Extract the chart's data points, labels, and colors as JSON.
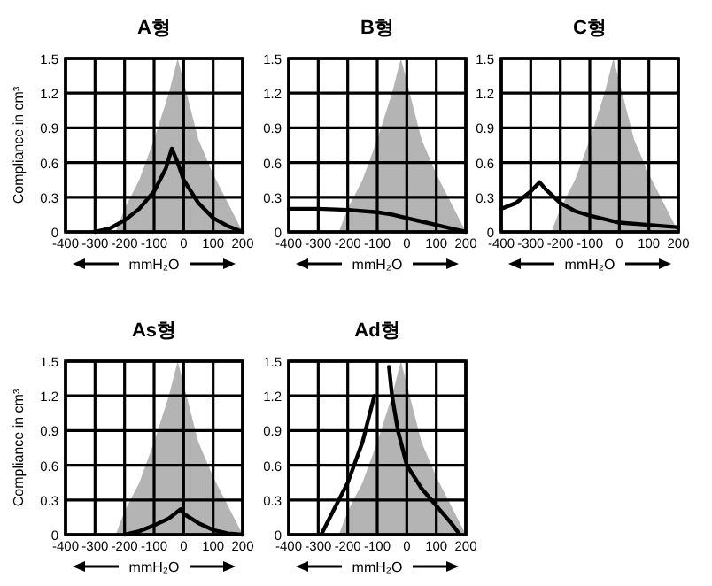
{
  "chart_data": [
    {
      "type": "line",
      "title": "A형",
      "xlabel": "mmH₂O",
      "ylabel": "Compliance in cm³",
      "xlim": [
        -400,
        200
      ],
      "ylim": [
        0,
        1.5
      ],
      "xticks": [
        -400,
        -300,
        -200,
        -100,
        0,
        100,
        200
      ],
      "yticks": [
        0,
        0.3,
        0.6,
        0.9,
        1.2,
        1.5
      ],
      "grid": true,
      "series": [
        {
          "type": "area",
          "color": "#b4b4b4",
          "x": [
            -230,
            -200,
            -150,
            -100,
            -50,
            -20,
            20,
            50,
            100,
            150,
            200
          ],
          "values": [
            0,
            0.2,
            0.45,
            0.8,
            1.2,
            1.5,
            1.1,
            0.8,
            0.5,
            0.25,
            0
          ]
        },
        {
          "type": "line",
          "color": "#000000",
          "x": [
            -300,
            -250,
            -200,
            -150,
            -100,
            -60,
            -40,
            -20,
            0,
            50,
            100,
            150,
            200
          ],
          "values": [
            0,
            0.03,
            0.1,
            0.2,
            0.35,
            0.55,
            0.72,
            0.6,
            0.45,
            0.25,
            0.12,
            0.05,
            0
          ]
        }
      ]
    },
    {
      "type": "line",
      "title": "B형",
      "xlabel": "mmH₂O",
      "xlim": [
        -400,
        200
      ],
      "ylim": [
        0,
        1.5
      ],
      "xticks": [
        -400,
        -300,
        -200,
        -100,
        0,
        100,
        200
      ],
      "yticks": [
        0,
        0.3,
        0.6,
        0.9,
        1.2,
        1.5
      ],
      "grid": true,
      "series": [
        {
          "type": "area",
          "color": "#b4b4b4",
          "x": [
            -230,
            -200,
            -150,
            -100,
            -50,
            -20,
            20,
            50,
            100,
            150,
            200
          ],
          "values": [
            0,
            0.2,
            0.45,
            0.8,
            1.2,
            1.5,
            1.1,
            0.8,
            0.5,
            0.25,
            0
          ]
        },
        {
          "type": "line",
          "color": "#000000",
          "x": [
            -400,
            -300,
            -200,
            -100,
            -50,
            0,
            50,
            100,
            150,
            200
          ],
          "values": [
            0.2,
            0.2,
            0.19,
            0.17,
            0.15,
            0.12,
            0.09,
            0.06,
            0.03,
            0
          ]
        }
      ]
    },
    {
      "type": "line",
      "title": "C형",
      "xlabel": "mmH₂O",
      "xlim": [
        -400,
        200
      ],
      "ylim": [
        0,
        1.5
      ],
      "xticks": [
        -400,
        -300,
        -200,
        -100,
        0,
        100,
        200
      ],
      "yticks": [
        0,
        0.3,
        0.6,
        0.9,
        1.2,
        1.5
      ],
      "grid": true,
      "series": [
        {
          "type": "area",
          "color": "#b4b4b4",
          "x": [
            -230,
            -200,
            -150,
            -100,
            -50,
            -20,
            20,
            50,
            100,
            150,
            200
          ],
          "values": [
            0,
            0.2,
            0.45,
            0.8,
            1.2,
            1.5,
            1.1,
            0.8,
            0.5,
            0.25,
            0
          ]
        },
        {
          "type": "line",
          "color": "#000000",
          "x": [
            -400,
            -350,
            -300,
            -270,
            -250,
            -200,
            -150,
            -100,
            -50,
            0,
            100,
            200
          ],
          "values": [
            0.2,
            0.25,
            0.35,
            0.43,
            0.37,
            0.25,
            0.18,
            0.14,
            0.11,
            0.08,
            0.06,
            0.04
          ]
        }
      ]
    },
    {
      "type": "line",
      "title": "As형",
      "xlabel": "mmH₂O",
      "ylabel": "Compliance in cm³",
      "xlim": [
        -400,
        200
      ],
      "ylim": [
        0,
        1.5
      ],
      "xticks": [
        -400,
        -300,
        -200,
        -100,
        0,
        100,
        200
      ],
      "yticks": [
        0,
        0.3,
        0.6,
        0.9,
        1.2,
        1.5
      ],
      "grid": true,
      "series": [
        {
          "type": "area",
          "color": "#b4b4b4",
          "x": [
            -230,
            -200,
            -150,
            -100,
            -50,
            -20,
            20,
            50,
            100,
            150,
            200
          ],
          "values": [
            0,
            0.2,
            0.45,
            0.8,
            1.2,
            1.5,
            1.1,
            0.8,
            0.5,
            0.25,
            0
          ]
        },
        {
          "type": "line",
          "color": "#000000",
          "x": [
            -200,
            -150,
            -100,
            -50,
            -10,
            0,
            50,
            100,
            150,
            200
          ],
          "values": [
            0,
            0.03,
            0.08,
            0.14,
            0.22,
            0.18,
            0.1,
            0.04,
            0.01,
            0
          ]
        }
      ]
    },
    {
      "type": "line",
      "title": "Ad형",
      "xlabel": "mmH₂O",
      "xlim": [
        -400,
        200
      ],
      "ylim": [
        0,
        1.5
      ],
      "xticks": [
        -400,
        -300,
        -200,
        -100,
        0,
        100,
        200
      ],
      "yticks": [
        0,
        0.3,
        0.6,
        0.9,
        1.2,
        1.5
      ],
      "grid": true,
      "series": [
        {
          "type": "area",
          "color": "#b4b4b4",
          "x": [
            -230,
            -200,
            -150,
            -100,
            -50,
            -20,
            20,
            50,
            100,
            150,
            200
          ],
          "values": [
            0,
            0.2,
            0.45,
            0.8,
            1.2,
            1.5,
            1.1,
            0.8,
            0.5,
            0.25,
            0
          ]
        },
        {
          "type": "line",
          "color": "#000000",
          "x": [
            -290,
            -250,
            -200,
            -150,
            -110
          ],
          "values": [
            0,
            0.2,
            0.45,
            0.8,
            1.2
          ]
        },
        {
          "type": "line",
          "color": "#000000",
          "x": [
            180,
            150,
            100,
            50,
            0,
            -30,
            -50,
            -60
          ],
          "values": [
            0,
            0.1,
            0.25,
            0.4,
            0.6,
            0.9,
            1.2,
            1.45
          ]
        }
      ]
    }
  ]
}
